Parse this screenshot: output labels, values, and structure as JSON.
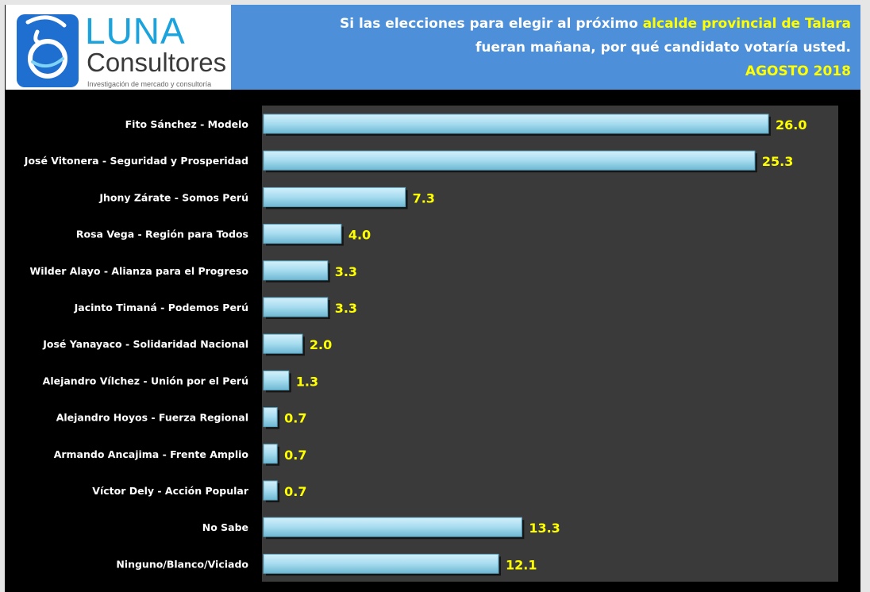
{
  "brand": {
    "name_top": "LUNA",
    "name_bottom": "Consultores",
    "tagline": "Investigación de mercado y consultoría"
  },
  "title": {
    "line1_pre": "Si las elecciones para elegir al próximo ",
    "line1_highlight": "alcalde provincial de Talara",
    "line2": "fueran mañana, por qué candidato votaría usted.",
    "line3": "AGOSTO 2018"
  },
  "colors": {
    "title_bg": "#4d8fd8",
    "plot_bg": "#3a3a3a",
    "bar_fill": "#a6dcef",
    "value_label": "#ffff00",
    "category_label": "#ffffff"
  },
  "chart_data": {
    "type": "bar",
    "orientation": "horizontal",
    "categories": [
      "Fito Sánchez - Modelo",
      "José Vitonera - Seguridad y Prosperidad",
      "Jhony Zárate - Somos Perú",
      "Rosa Vega - Región para Todos",
      "Wilder Alayo - Alianza para el Progreso",
      "Jacinto Timaná - Podemos Perú",
      "José Yanayaco - Solidaridad Nacional",
      "Alejandro Vílchez - Unión por el Perú",
      "Alejandro Hoyos - Fuerza Regional",
      "Armando Ancajima - Frente Amplio",
      "Víctor Dely - Acción Popular",
      "No Sabe",
      "Ninguno/Blanco/Viciado"
    ],
    "values": [
      26.0,
      25.3,
      7.3,
      4.0,
      3.3,
      3.3,
      2.0,
      1.3,
      0.7,
      0.7,
      0.7,
      13.3,
      12.1
    ],
    "value_labels": [
      "26.0",
      "25.3",
      "7.3",
      "4.0",
      "3.3",
      "3.3",
      "2.0",
      "1.3",
      "0.7",
      "0.7",
      "0.7",
      "13.3",
      "12.1"
    ],
    "xlim": [
      0,
      26.0
    ],
    "grid": false,
    "legend": "none"
  }
}
